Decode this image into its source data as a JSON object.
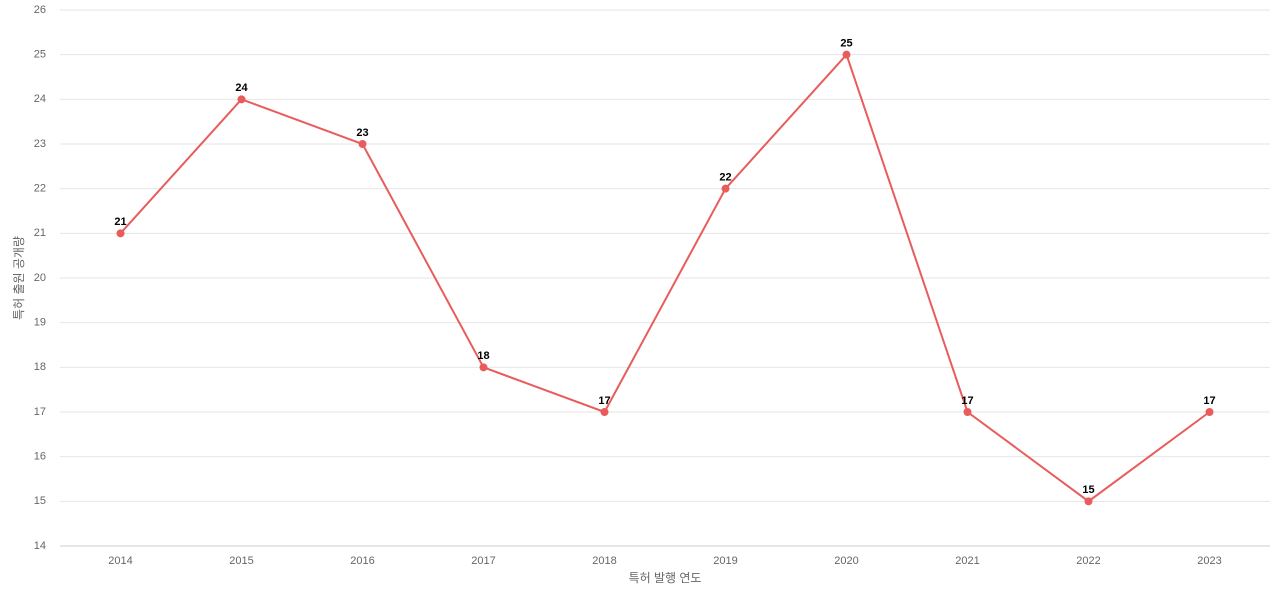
{
  "chart_data": {
    "type": "line",
    "categories": [
      "2014",
      "2015",
      "2016",
      "2017",
      "2018",
      "2019",
      "2020",
      "2021",
      "2022",
      "2023"
    ],
    "values": [
      21,
      24,
      23,
      18,
      17,
      22,
      25,
      17,
      15,
      17
    ],
    "color": "#e85c5c",
    "x_label": "특허 발행 연도",
    "y_label": "특허 출원 공개량",
    "ylim": [
      14,
      26
    ],
    "yticks": [
      14,
      15,
      16,
      17,
      18,
      19,
      20,
      21,
      22,
      23,
      24,
      25,
      26
    ],
    "grid": true
  }
}
